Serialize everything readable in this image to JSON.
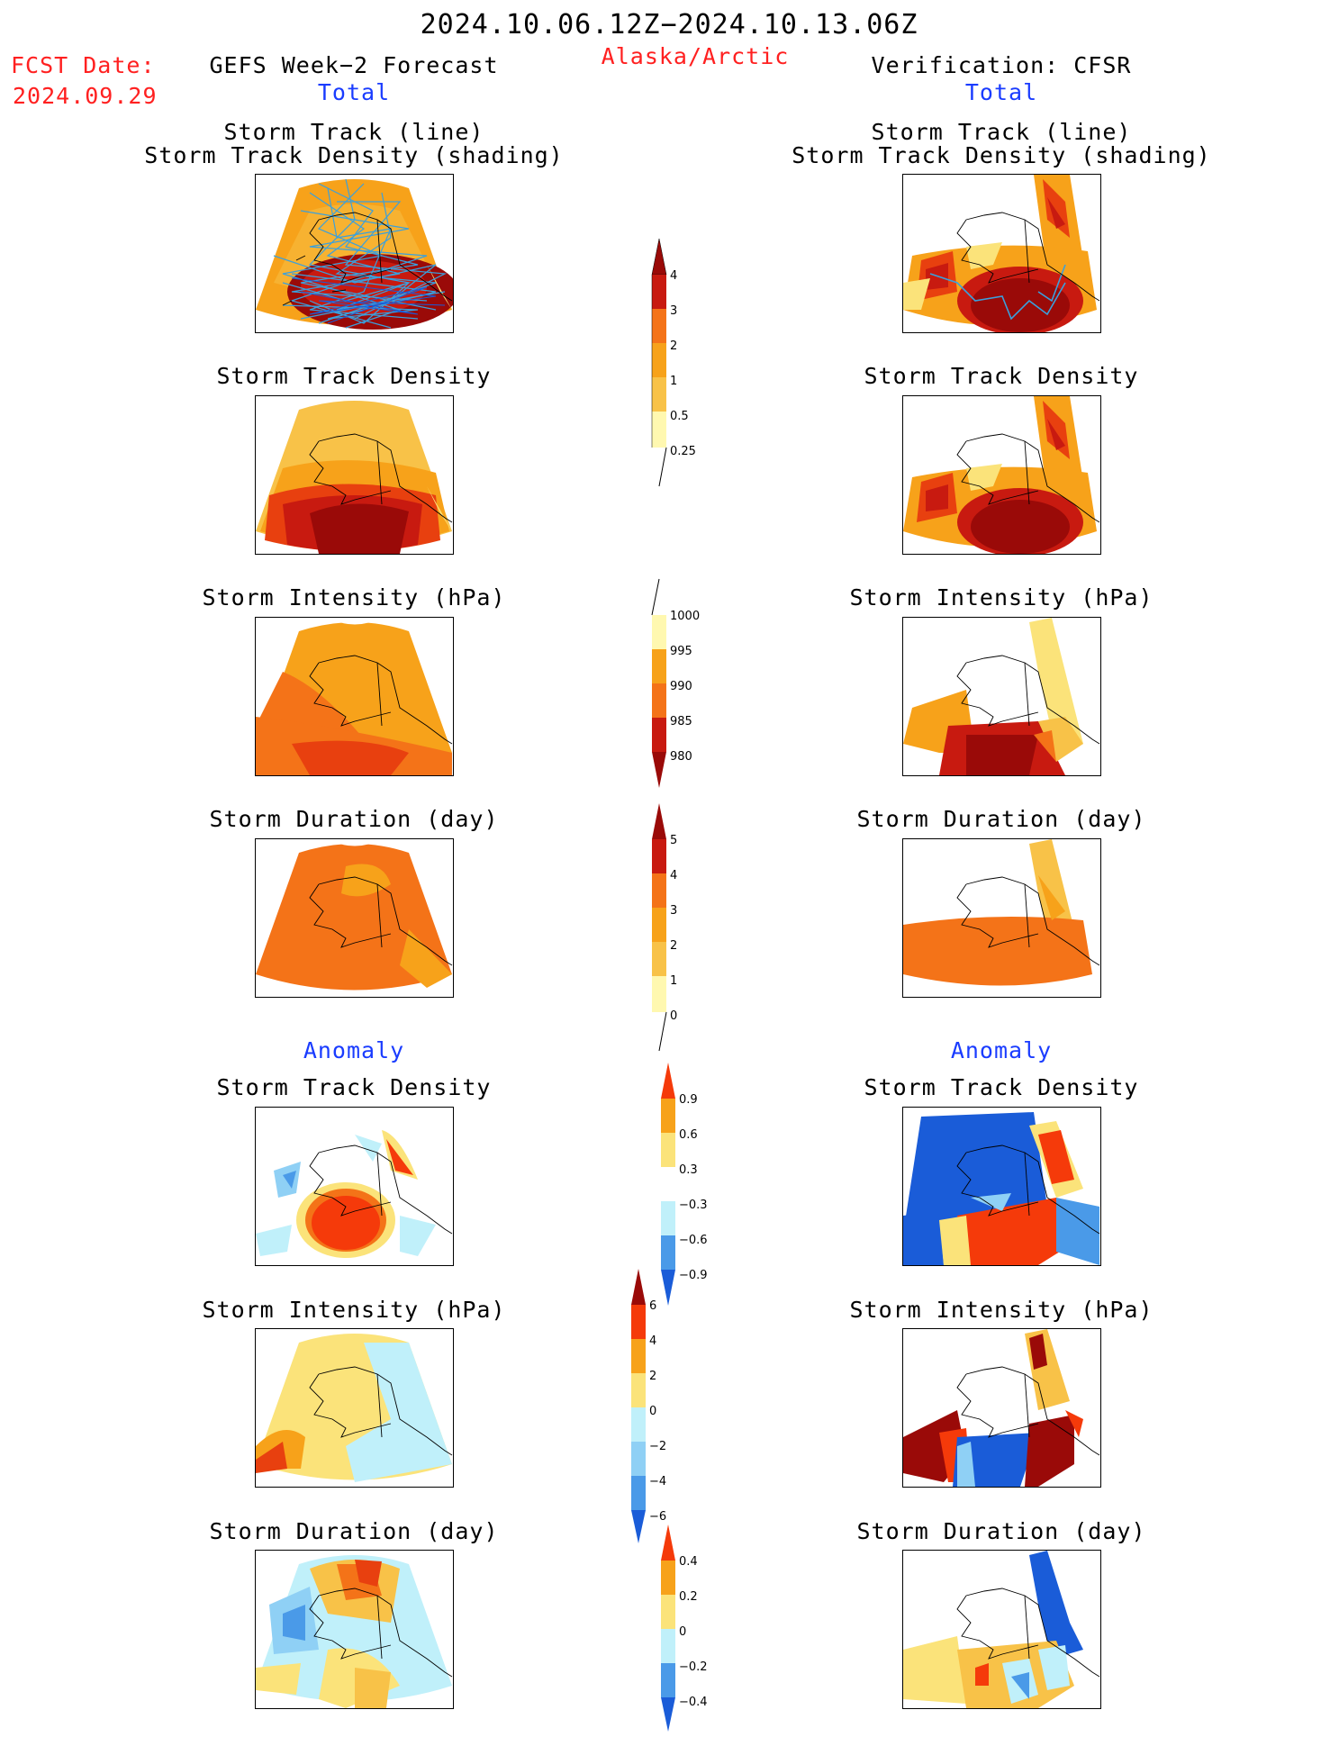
{
  "header": {
    "period": "2024.10.06.12Z−2024.10.13.06Z",
    "region": "Alaska/Arctic",
    "fcst_label": "FCST Date:",
    "fcst_date": "2024.09.29",
    "left_title": "GEFS Week−2 Forecast",
    "right_title": "Verification: CFSR"
  },
  "sections": {
    "total": "Total",
    "anomaly": "Anomaly"
  },
  "panel_titles": {
    "track_line": "Storm Track (line)",
    "track_shading": "Storm Track Density (shading)",
    "density": "Storm Track Density",
    "intensity": "Storm Intensity (hPa)",
    "duration": "Storm Duration (day)"
  },
  "colorbars": {
    "total_density": [
      "4",
      "3",
      "2",
      "1",
      "0.5",
      "0.25"
    ],
    "total_intensity": [
      "1000",
      "995",
      "990",
      "985",
      "980"
    ],
    "total_duration": [
      "5",
      "4",
      "3",
      "2",
      "1",
      "0"
    ],
    "anom_density": [
      "0.9",
      "0.6",
      "0.3",
      "−0.3",
      "−0.6",
      "−0.9"
    ],
    "anom_intensity": [
      "6",
      "4",
      "2",
      "0",
      "−2",
      "−4",
      "−6"
    ],
    "anom_duration": [
      "0.4",
      "0.2",
      "0",
      "−0.2",
      "−0.4"
    ]
  },
  "colors": {
    "warm": [
      "#fff8b0",
      "#fbe37a",
      "#f8c248",
      "#f7a21a",
      "#f47318",
      "#e8400f",
      "#c81a10",
      "#9a0a08"
    ],
    "cool": [
      "#c0f0fa",
      "#8fd0f5",
      "#4a9ae8",
      "#1a5cd8",
      "#0a3cb8"
    ],
    "track_line": "#3aa0dd"
  }
}
